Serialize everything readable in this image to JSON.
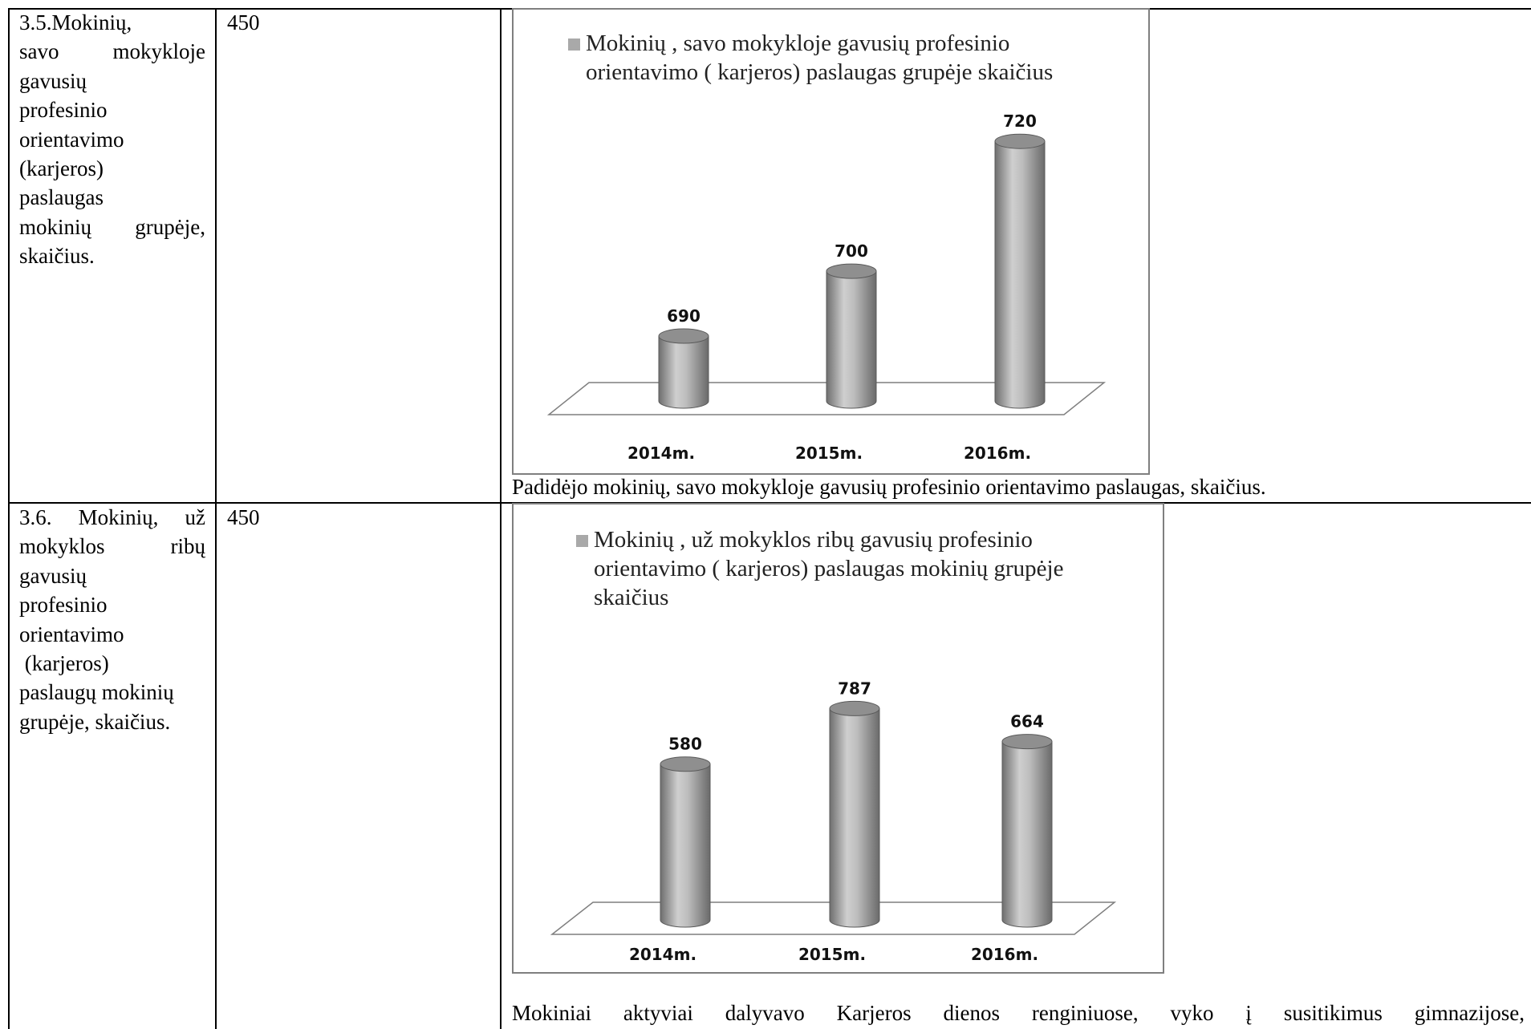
{
  "rows": [
    {
      "indicator_lines": [
        "3.5.Mokinių,",
        "savo mokykloje",
        "gavusių",
        "profesinio",
        "orientavimo",
        "(karjeros)",
        "paslaugas",
        "mokinių grupėje,",
        "skaičius."
      ],
      "target": "450",
      "caption": "Padidėjo mokinių, savo mokykloje gavusių profesinio orientavimo paslaugas, skaičius."
    },
    {
      "indicator_lines": [
        "3.6. Mokinių, už",
        "mokyklos ribų",
        "gavusių",
        "profesinio",
        "orientavimo",
        " (karjeros)",
        "paslaugų mokinių",
        "grupėje, skaičius."
      ],
      "target": "450",
      "caption_words": [
        "Mokiniai",
        "aktyviai",
        "dalyvavo",
        "Karjeros",
        "dienos",
        "renginiuose,",
        "vyko",
        "į",
        "susitikimus",
        "gimnazijose,"
      ]
    }
  ],
  "chart_data": [
    {
      "type": "bar",
      "style": "3d-cylinder",
      "legend": [
        "Mokinių , savo mokykloje gavusių profesinio",
        "orientavimo ( karjeros) paslaugas grupėje skaičius"
      ],
      "series": [
        {
          "name": "Mokinių , savo mokykloje gavusių profesinio orientavimo ( karjeros) paslaugas grupėje skaičius",
          "values": [
            690,
            700,
            720
          ]
        }
      ],
      "categories": [
        "2014m.",
        "2015m.",
        "2016m."
      ],
      "data_labels": [
        "690",
        "700",
        "720"
      ],
      "ylim": [
        680,
        722
      ],
      "bar_color": "#a6a6a6",
      "grid": false,
      "legend_position": "top"
    },
    {
      "type": "bar",
      "style": "3d-cylinder",
      "legend": [
        "Mokinių , už mokyklos ribų gavusių profesinio",
        "orientavimo ( karjeros) paslaugas mokinių grupėje",
        "skaičius"
      ],
      "series": [
        {
          "name": "Mokinių , už mokyklos ribų gavusių profesinio orientavimo ( karjeros) paslaugas mokinių grupėje skaičius",
          "values": [
            580,
            787,
            664
          ]
        }
      ],
      "categories": [
        "2014m.",
        "2015m.",
        "2016m."
      ],
      "data_labels": [
        "580",
        "787",
        "664"
      ],
      "ylim": [
        0,
        842
      ],
      "bar_color": "#a6a6a6",
      "grid": false,
      "legend_position": "top"
    }
  ]
}
